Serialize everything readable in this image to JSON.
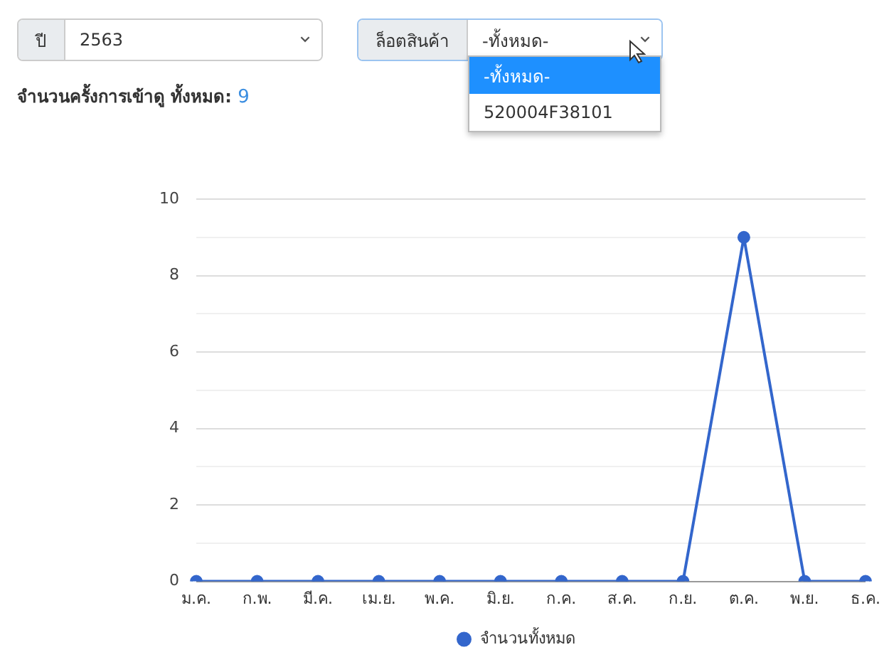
{
  "chart_data": {
    "type": "line",
    "categories": [
      "ม.ค.",
      "ก.พ.",
      "มี.ค.",
      "เม.ย.",
      "พ.ค.",
      "มิ.ย.",
      "ก.ค.",
      "ส.ค.",
      "ก.ย.",
      "ต.ค.",
      "พ.ย.",
      "ธ.ค."
    ],
    "series": [
      {
        "name": "จำนวนทั้งหมด",
        "color": "#3366cc",
        "values": [
          0,
          0,
          0,
          0,
          0,
          0,
          0,
          0,
          0,
          9,
          0,
          0
        ]
      }
    ],
    "ylim": [
      0,
      10
    ],
    "yticks": [
      0,
      {
        "value": 1,
        "label": null
      },
      2,
      {
        "value": 3,
        "label": null
      },
      4,
      {
        "value": 5,
        "label": null
      },
      6,
      {
        "value": 7,
        "label": null
      },
      8,
      {
        "value": 9,
        "label": null
      },
      10
    ],
    "grid": "y",
    "legend": "bottom",
    "marker": "circle",
    "line_style": "solid",
    "annotations": [
      "ปี",
      "2563",
      "ล็อตสินค้า",
      "-ทั้งหมด-",
      "-ทั้งหมด-",
      "520004F38101",
      "จำนวนครั้งการเข้าดู ทั้งหมด:",
      "9"
    ]
  }
}
